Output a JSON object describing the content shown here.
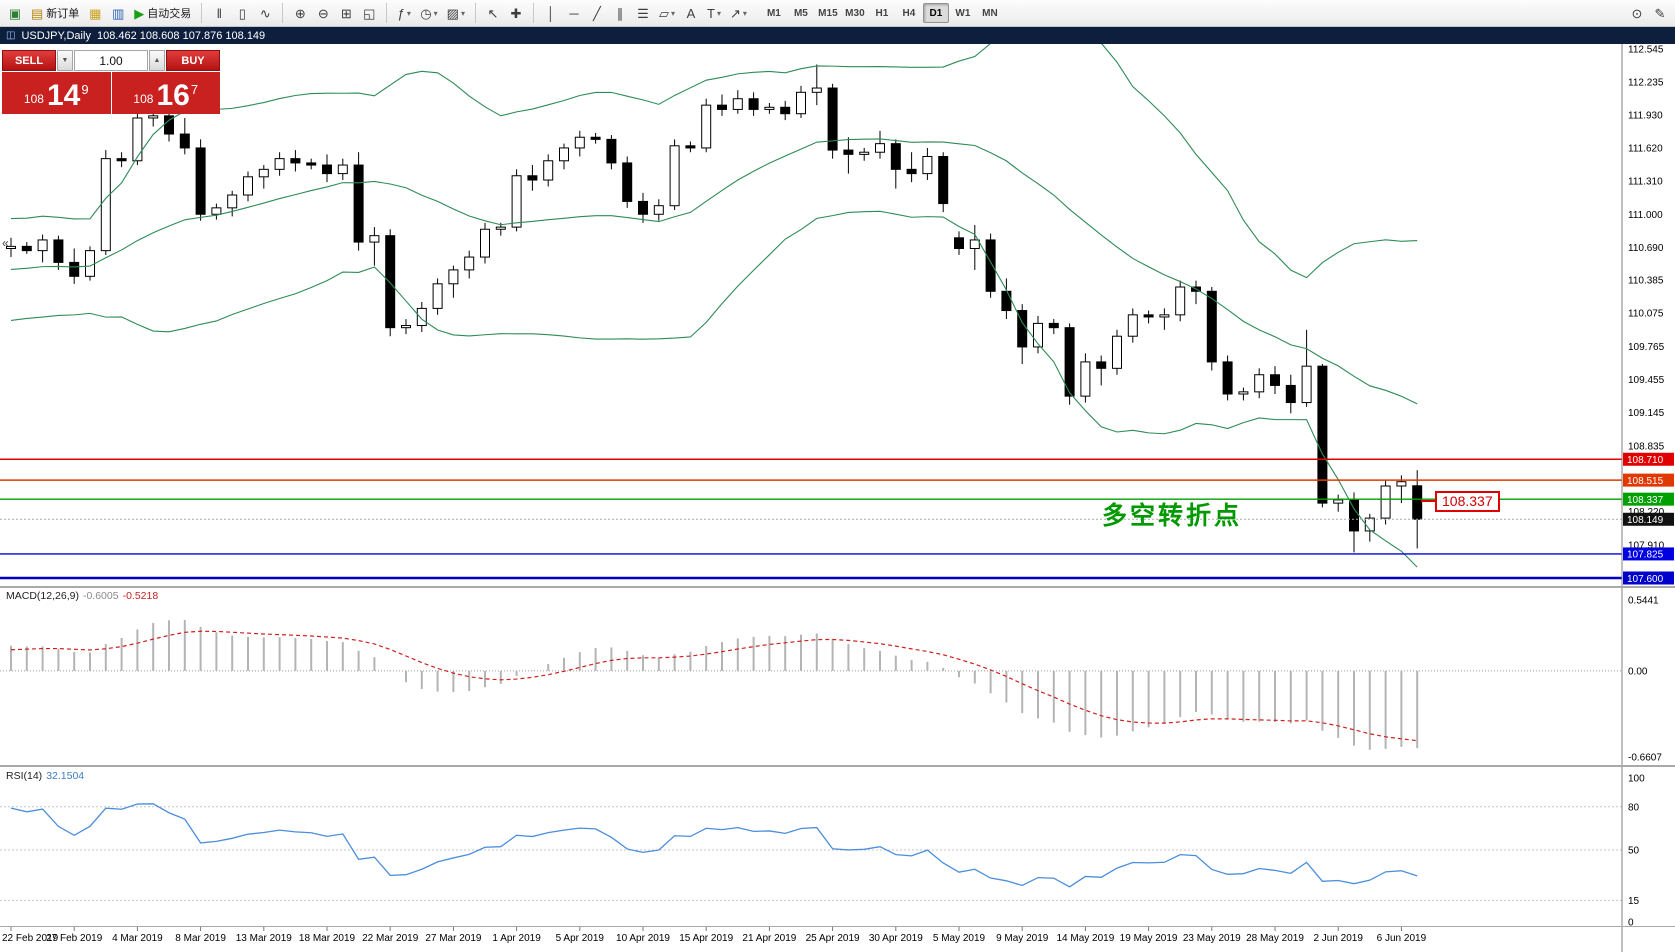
{
  "toolbar": {
    "groups": [
      [
        {
          "n": "app-button",
          "g": "▣",
          "c": "#2e7d32"
        },
        {
          "n": "new-order-button",
          "g": "▤",
          "c": "#b8860b",
          "label": "新订单"
        },
        {
          "n": "profiles-button",
          "g": "▦",
          "c": "#c8a020"
        },
        {
          "n": "charts-button",
          "g": "▥",
          "c": "#2a62b8"
        },
        {
          "n": "autotrade-button",
          "g": "▶",
          "c": "#15a015",
          "label": "自动交易"
        }
      ],
      [
        {
          "n": "bar-chart-button",
          "g": "‖"
        },
        {
          "n": "candlestick-chart-button",
          "g": "▯"
        },
        {
          "n": "line-chart-button",
          "g": "∿"
        }
      ],
      [
        {
          "n": "zoom-in-button",
          "g": "⊕"
        },
        {
          "n": "zoom-out-button",
          "g": "⊖"
        },
        {
          "n": "tile-windows-button",
          "g": "⊞"
        },
        {
          "n": "cascade-windows-button",
          "g": "◱"
        }
      ],
      [
        {
          "n": "indicators-button",
          "g": "ƒ",
          "dd": true
        },
        {
          "n": "periods-button",
          "g": "◷",
          "dd": true
        },
        {
          "n": "templates-button",
          "g": "▨",
          "dd": true
        }
      ],
      [
        {
          "n": "cursor-button",
          "g": "↖"
        },
        {
          "n": "crosshair-button",
          "g": "✚"
        }
      ],
      [
        {
          "n": "vertical-line-button",
          "g": "│"
        },
        {
          "n": "horizontal-line-button",
          "g": "─"
        },
        {
          "n": "trendline-button",
          "g": "╱"
        },
        {
          "n": "channel-button",
          "g": "∥"
        },
        {
          "n": "fibonacci-button",
          "g": "☰"
        },
        {
          "n": "shapes-button",
          "g": "▱",
          "dd": true
        },
        {
          "n": "text-button",
          "g": "A"
        },
        {
          "n": "label-button",
          "g": "T",
          "dd": true
        },
        {
          "n": "arrows-button",
          "g": "↗",
          "dd": true
        }
      ]
    ],
    "right_icons": [
      {
        "n": "search-button",
        "g": "⊙"
      },
      {
        "n": "edit-button",
        "g": "✎"
      }
    ],
    "timeframes": [
      "M1",
      "M5",
      "M15",
      "M30",
      "H1",
      "H4",
      "D1",
      "W1",
      "MN"
    ],
    "active_timeframe": "D1"
  },
  "chart_header": {
    "symbol": "USDJPY,Daily",
    "ohlc": "108.462 108.608 107.876 108.149"
  },
  "trade_panel": {
    "sell_label": "SELL",
    "buy_label": "BUY",
    "volume": "1.00",
    "sell_big": "108",
    "sell_pips": "14",
    "sell_pip": "9",
    "buy_big": "108",
    "buy_pips": "16",
    "buy_pip": "7"
  },
  "annotations": {
    "turning_point": "多空转折点",
    "price_callout": "108.337"
  },
  "indicators": {
    "macd": {
      "name": "MACD(12,26,9)",
      "value1": "-0.6005",
      "value2": "-0.5218"
    },
    "rsi": {
      "name": "RSI(14)",
      "value": "32.1504"
    }
  },
  "chart_data": {
    "type": "candlestick",
    "symbol": "USDJPY",
    "timeframe": "Daily",
    "colors": {
      "bollinger": "#2E8B57",
      "macd_hist": "#b4b4b4",
      "macd_signal": "#d02020",
      "rsi_line": "#4b8edc",
      "bull": "#ffffff",
      "bear": "#000000"
    },
    "bollinger": {
      "period": 20,
      "deviation": 2
    },
    "ohlc_pre": [
      [
        109.9,
        110.02,
        109.82,
        109.95
      ],
      [
        109.95,
        110.12,
        109.9,
        110.05
      ],
      [
        110.05,
        110.22,
        110.0,
        110.15
      ],
      [
        110.15,
        110.5,
        110.1,
        110.45
      ],
      [
        110.45,
        110.56,
        110.38,
        110.5
      ],
      [
        110.5,
        110.55,
        110.36,
        110.45
      ],
      [
        110.45,
        110.62,
        110.4,
        110.55
      ],
      [
        110.55,
        110.72,
        110.5,
        110.65
      ],
      [
        110.65,
        110.7,
        110.42,
        110.48
      ],
      [
        110.48,
        110.64,
        110.44,
        110.58
      ],
      [
        110.58,
        110.68,
        110.52,
        110.62
      ],
      [
        110.62,
        110.74,
        110.56,
        110.68
      ],
      [
        110.68,
        110.8,
        110.62,
        110.75
      ],
      [
        110.75,
        110.78,
        110.64,
        110.7
      ]
    ],
    "ohlc": [
      [
        110.68,
        110.78,
        110.6,
        110.7
      ],
      [
        110.7,
        110.74,
        110.63,
        110.66
      ],
      [
        110.66,
        110.81,
        110.55,
        110.76
      ],
      [
        110.76,
        110.8,
        110.48,
        110.55
      ],
      [
        110.55,
        110.68,
        110.35,
        110.42
      ],
      [
        110.42,
        110.7,
        110.38,
        110.66
      ],
      [
        110.66,
        111.6,
        110.62,
        111.52
      ],
      [
        111.52,
        111.58,
        111.44,
        111.5
      ],
      [
        111.5,
        112.08,
        111.46,
        111.9
      ],
      [
        111.9,
        112.14,
        111.82,
        111.92
      ],
      [
        111.92,
        112.0,
        111.68,
        111.75
      ],
      [
        111.75,
        111.9,
        111.56,
        111.62
      ],
      [
        111.62,
        111.7,
        110.94,
        111.0
      ],
      [
        111.0,
        111.1,
        110.95,
        111.06
      ],
      [
        111.06,
        111.22,
        110.98,
        111.18
      ],
      [
        111.18,
        111.4,
        111.12,
        111.35
      ],
      [
        111.35,
        111.46,
        111.24,
        111.42
      ],
      [
        111.42,
        111.58,
        111.36,
        111.52
      ],
      [
        111.52,
        111.6,
        111.4,
        111.48
      ],
      [
        111.48,
        111.52,
        111.42,
        111.46
      ],
      [
        111.46,
        111.56,
        111.3,
        111.38
      ],
      [
        111.38,
        111.52,
        111.32,
        111.46
      ],
      [
        111.46,
        111.58,
        110.66,
        110.74
      ],
      [
        110.74,
        110.88,
        110.52,
        110.8
      ],
      [
        110.8,
        110.86,
        109.86,
        109.94
      ],
      [
        109.94,
        110.02,
        109.88,
        109.96
      ],
      [
        109.96,
        110.18,
        109.9,
        110.12
      ],
      [
        110.12,
        110.4,
        110.06,
        110.35
      ],
      [
        110.35,
        110.52,
        110.22,
        110.48
      ],
      [
        110.48,
        110.66,
        110.4,
        110.6
      ],
      [
        110.6,
        110.92,
        110.54,
        110.86
      ],
      [
        110.86,
        110.92,
        110.8,
        110.88
      ],
      [
        110.88,
        111.42,
        110.84,
        111.36
      ],
      [
        111.36,
        111.46,
        111.22,
        111.32
      ],
      [
        111.32,
        111.56,
        111.26,
        111.5
      ],
      [
        111.5,
        111.66,
        111.42,
        111.62
      ],
      [
        111.62,
        111.78,
        111.54,
        111.72
      ],
      [
        111.72,
        111.76,
        111.66,
        111.7
      ],
      [
        111.7,
        111.74,
        111.42,
        111.48
      ],
      [
        111.48,
        111.54,
        111.06,
        111.12
      ],
      [
        111.12,
        111.2,
        110.92,
        111.0
      ],
      [
        111.0,
        111.14,
        110.94,
        111.08
      ],
      [
        111.08,
        111.7,
        111.04,
        111.64
      ],
      [
        111.64,
        111.68,
        111.58,
        111.62
      ],
      [
        111.62,
        112.08,
        111.58,
        112.02
      ],
      [
        112.02,
        112.12,
        111.92,
        111.98
      ],
      [
        111.98,
        112.16,
        111.94,
        112.08
      ],
      [
        112.08,
        112.14,
        111.92,
        111.98
      ],
      [
        111.98,
        112.04,
        111.94,
        112.0
      ],
      [
        112.0,
        112.06,
        111.88,
        111.94
      ],
      [
        111.94,
        112.2,
        111.9,
        112.14
      ],
      [
        112.14,
        112.4,
        112.02,
        112.18
      ],
      [
        112.18,
        112.22,
        111.52,
        111.6
      ],
      [
        111.6,
        111.72,
        111.38,
        111.56
      ],
      [
        111.56,
        111.62,
        111.5,
        111.58
      ],
      [
        111.58,
        111.78,
        111.52,
        111.66
      ],
      [
        111.66,
        111.7,
        111.24,
        111.42
      ],
      [
        111.42,
        111.58,
        111.3,
        111.38
      ],
      [
        111.38,
        111.62,
        111.32,
        111.54
      ],
      [
        111.54,
        111.58,
        111.02,
        111.1
      ],
      [
        110.78,
        110.84,
        110.62,
        110.68
      ],
      [
        110.68,
        110.9,
        110.48,
        110.76
      ],
      [
        110.76,
        110.82,
        110.22,
        110.28
      ],
      [
        110.28,
        110.4,
        110.02,
        110.1
      ],
      [
        110.1,
        110.16,
        109.6,
        109.76
      ],
      [
        109.76,
        110.05,
        109.7,
        109.98
      ],
      [
        109.98,
        110.02,
        109.88,
        109.94
      ],
      [
        109.94,
        109.98,
        109.22,
        109.3
      ],
      [
        109.3,
        109.7,
        109.24,
        109.62
      ],
      [
        109.62,
        109.68,
        109.4,
        109.56
      ],
      [
        109.56,
        109.92,
        109.5,
        109.86
      ],
      [
        109.86,
        110.12,
        109.8,
        110.06
      ],
      [
        110.06,
        110.1,
        109.98,
        110.04
      ],
      [
        110.04,
        110.12,
        109.92,
        110.06
      ],
      [
        110.06,
        110.38,
        110.0,
        110.32
      ],
      [
        110.32,
        110.38,
        110.16,
        110.28
      ],
      [
        110.28,
        110.32,
        109.54,
        109.62
      ],
      [
        109.62,
        109.68,
        109.26,
        109.32
      ],
      [
        109.32,
        109.38,
        109.26,
        109.34
      ],
      [
        109.34,
        109.56,
        109.28,
        109.5
      ],
      [
        109.5,
        109.58,
        109.32,
        109.4
      ],
      [
        109.4,
        109.5,
        109.14,
        109.24
      ],
      [
        109.24,
        109.92,
        109.2,
        109.58
      ],
      [
        109.58,
        109.6,
        108.26,
        108.3
      ],
      [
        108.3,
        108.38,
        108.22,
        108.33
      ],
      [
        108.33,
        108.4,
        107.84,
        108.04
      ],
      [
        108.04,
        108.2,
        107.94,
        108.16
      ],
      [
        108.16,
        108.52,
        108.1,
        108.46
      ],
      [
        108.46,
        108.56,
        108.3,
        108.5
      ],
      [
        108.462,
        108.608,
        107.876,
        108.149
      ]
    ],
    "date_labels": [
      [
        0,
        "22 Feb 2019"
      ],
      [
        4,
        "27 Feb 2019"
      ],
      [
        8,
        "4 Mar 2019"
      ],
      [
        12,
        "8 Mar 2019"
      ],
      [
        16,
        "13 Mar 2019"
      ],
      [
        20,
        "18 Mar 2019"
      ],
      [
        24,
        "22 Mar 2019"
      ],
      [
        28,
        "27 Mar 2019"
      ],
      [
        32,
        "1 Apr 2019"
      ],
      [
        36,
        "5 Apr 2019"
      ],
      [
        40,
        "10 Apr 2019"
      ],
      [
        44,
        "15 Apr 2019"
      ],
      [
        48,
        "21 Apr 2019"
      ],
      [
        52,
        "25 Apr 2019"
      ],
      [
        56,
        "30 Apr 2019"
      ],
      [
        60,
        "5 May 2019"
      ],
      [
        64,
        "9 May 2019"
      ],
      [
        68,
        "14 May 2019"
      ],
      [
        72,
        "19 May 2019"
      ],
      [
        76,
        "23 May 2019"
      ],
      [
        80,
        "28 May 2019"
      ],
      [
        84,
        "2 Jun 2019"
      ],
      [
        88,
        "6 Jun 2019"
      ]
    ],
    "price_axis": {
      "labels": [
        "112.545",
        "112.235",
        "111.930",
        "111.620",
        "111.310",
        "111.000",
        "110.690",
        "110.385",
        "110.075",
        "109.765",
        "109.455",
        "109.145",
        "108.835",
        "108.220",
        "107.910"
      ],
      "tags": [
        {
          "text": "108.710",
          "price": 108.71,
          "color": "#e00000"
        },
        {
          "text": "108.515",
          "price": 108.515,
          "color": "#e03800"
        },
        {
          "text": "108.337",
          "price": 108.337,
          "color": "#00a000"
        },
        {
          "text": "108.149",
          "price": 108.149,
          "color": "#111111"
        },
        {
          "text": "107.825",
          "price": 107.825,
          "color": "#0000e0"
        },
        {
          "text": "107.600",
          "price": 107.6,
          "color": "#0000cc"
        }
      ]
    },
    "hlines": [
      {
        "price": 108.71,
        "color": "#e00000",
        "w": 1.4
      },
      {
        "price": 108.515,
        "color": "#e03800",
        "w": 1.4
      },
      {
        "price": 108.337,
        "color": "#00a000",
        "w": 1.4
      },
      {
        "price": 108.149,
        "color": "#aaaaaa",
        "w": 1,
        "dash": "2,2"
      },
      {
        "price": 107.825,
        "color": "#0000e0",
        "w": 1.4
      },
      {
        "price": 107.6,
        "color": "#0000cc",
        "w": 2.4
      }
    ],
    "macd": {
      "params": "12,26,9",
      "axis": [
        {
          "t": "0.5441",
          "v": 0.5441
        },
        {
          "t": "0.00",
          "v": 0
        },
        {
          "t": "-0.6607",
          "v": -0.6607
        }
      ]
    },
    "rsi": {
      "period": 14,
      "current": 32.1504,
      "levels": [
        80,
        50,
        15
      ],
      "axis": [
        {
          "t": "100",
          "v": 100
        },
        {
          "t": "80",
          "v": 80
        },
        {
          "t": "50",
          "v": 50
        },
        {
          "t": "15",
          "v": 15
        },
        {
          "t": "0",
          "v": 0
        }
      ]
    }
  }
}
